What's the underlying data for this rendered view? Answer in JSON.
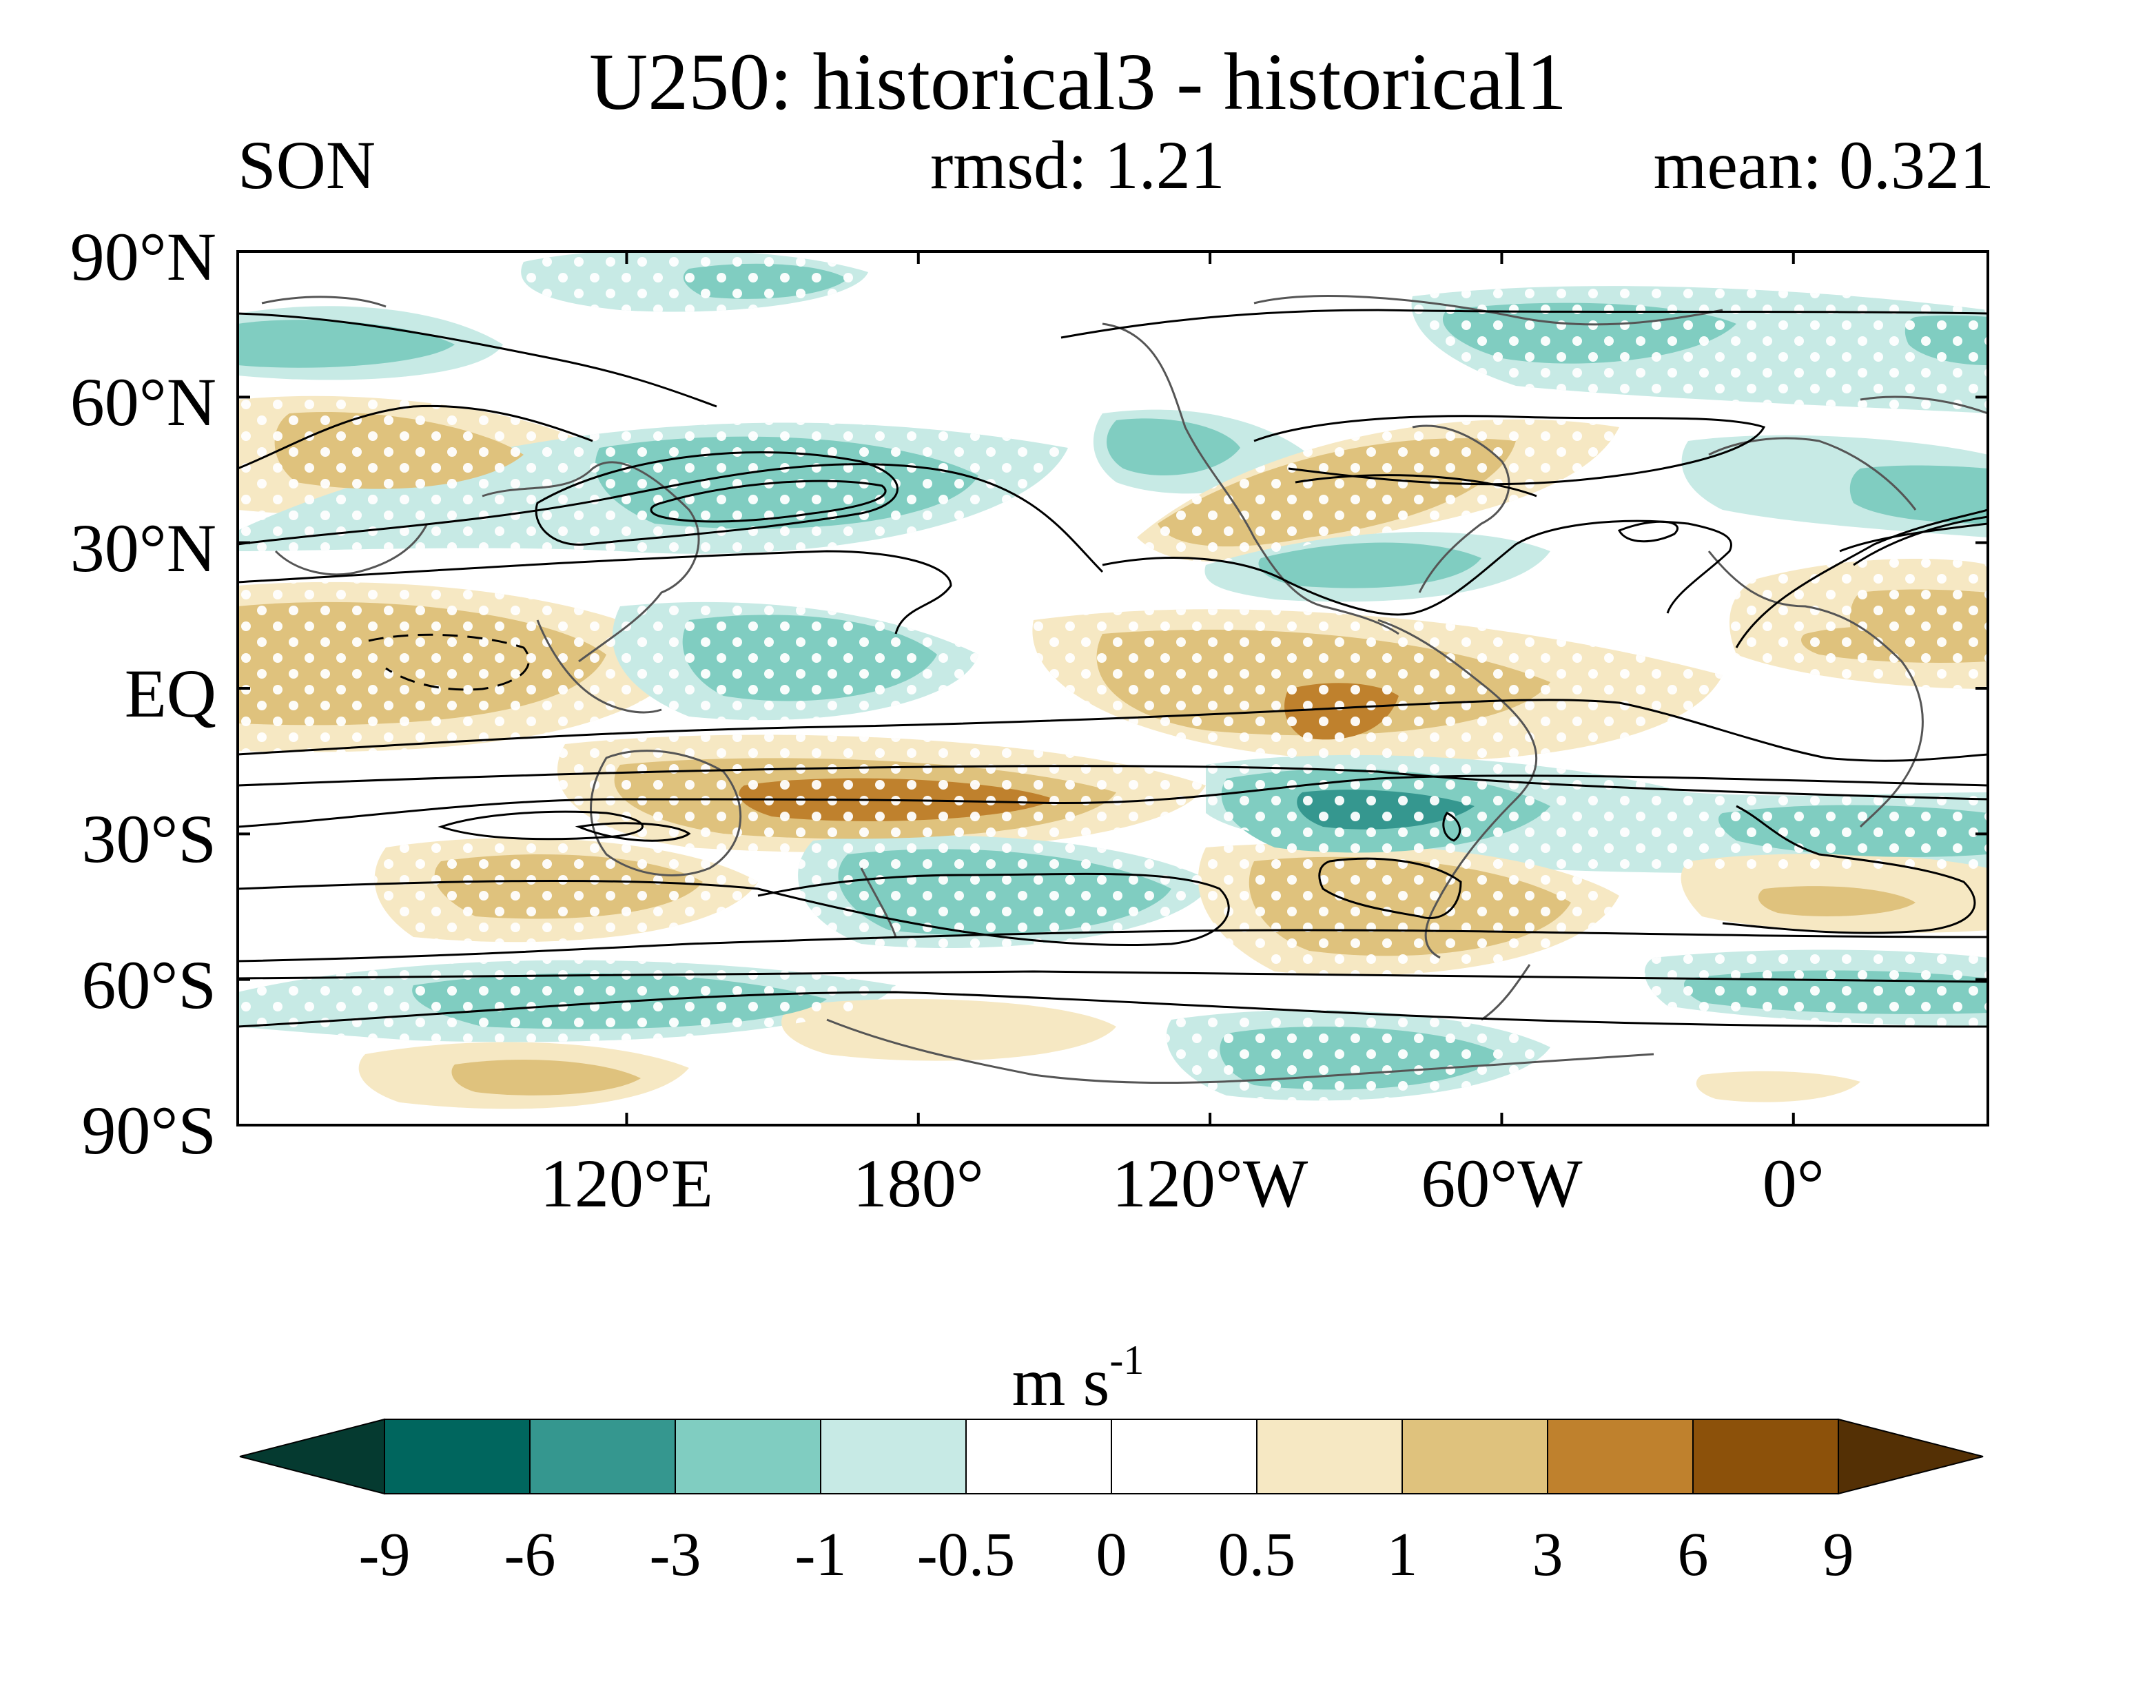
{
  "title": "U250: historical3 - historical1",
  "season": "SON",
  "rmsd_text": "rmsd: 1.21",
  "mean_text": "mean: 0.321",
  "lat_labels": [
    "90°N",
    "60°N",
    "30°N",
    "EQ",
    "30°S",
    "60°S",
    "90°S"
  ],
  "lat_values": [
    90,
    60,
    30,
    0,
    -30,
    -60,
    -90
  ],
  "lon_labels": [
    "120°E",
    "180°",
    "120°W",
    "60°W",
    "0°"
  ],
  "lon_values": [
    120,
    180,
    240,
    300,
    360
  ],
  "lon_range": [
    40,
    400
  ],
  "colorbar": {
    "units_base": "m s",
    "units_exp": "-1",
    "tick_labels": [
      "-9",
      "-6",
      "-3",
      "-1",
      "-0.5",
      "0",
      "0.5",
      "1",
      "3",
      "6",
      "9"
    ],
    "levels": [
      -9,
      -6,
      -3,
      -1,
      -0.5,
      0,
      0.5,
      1,
      3,
      6,
      9
    ],
    "colors": [
      "#053a30",
      "#00665e",
      "#35978f",
      "#80cdc1",
      "#c7eae5",
      "#ffffff",
      "#ffffff",
      "#f6e8c3",
      "#dfc27d",
      "#bf812d",
      "#8c510a",
      "#543005"
    ]
  },
  "map_style": {
    "coast_color": "#555555",
    "contour_color": "#000000",
    "stipple_color": "#ffffff"
  }
}
